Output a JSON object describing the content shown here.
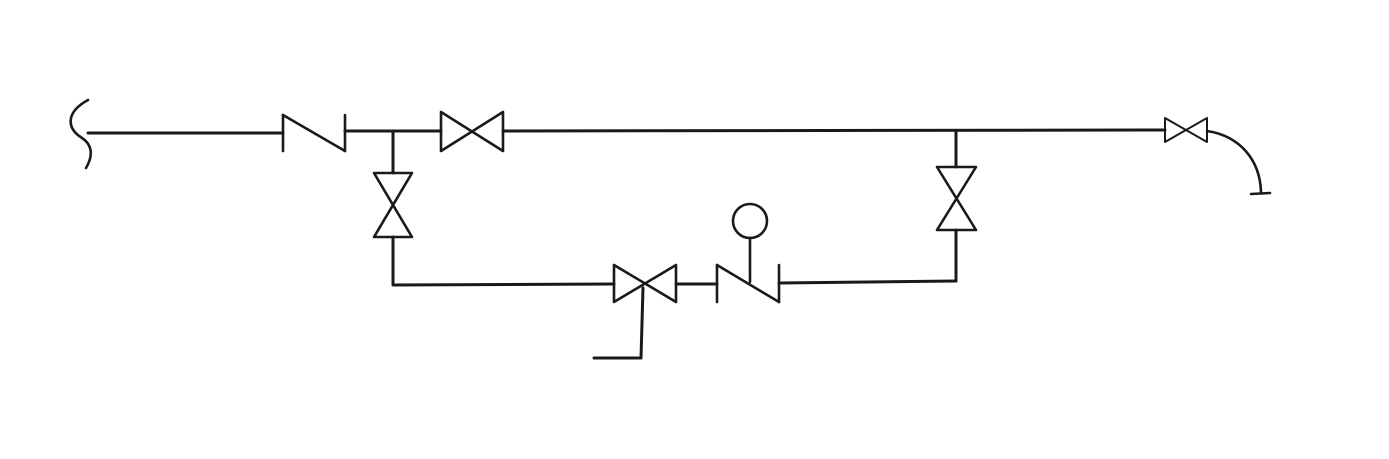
{
  "diagram": {
    "type": "piping-schematic",
    "colors": {
      "ink": "#1a1a1a",
      "background": "#ffffff"
    },
    "components": [
      {
        "id": "inlet-break",
        "kind": "line-break",
        "icon": "wavy-break-icon"
      },
      {
        "id": "check-valve-main",
        "kind": "check-valve",
        "icon": "check-valve-icon"
      },
      {
        "id": "gate-valve-main",
        "kind": "gate-valve",
        "icon": "gate-valve-icon"
      },
      {
        "id": "gate-valve-left-riser",
        "kind": "gate-valve",
        "icon": "gate-valve-icon"
      },
      {
        "id": "gate-valve-bypass",
        "kind": "gate-valve",
        "icon": "gate-valve-icon"
      },
      {
        "id": "drain-line",
        "kind": "drain-leg",
        "icon": "drain-line-icon"
      },
      {
        "id": "check-valve-bypass",
        "kind": "check-valve",
        "icon": "check-valve-icon"
      },
      {
        "id": "gauge",
        "kind": "gauge-instrument",
        "icon": "gauge-icon"
      },
      {
        "id": "gate-valve-right-riser",
        "kind": "gate-valve",
        "icon": "gate-valve-icon"
      },
      {
        "id": "gate-valve-outlet",
        "kind": "gate-valve",
        "icon": "gate-valve-icon"
      },
      {
        "id": "outlet-elbow-cap",
        "kind": "end-cap",
        "icon": "end-cap-icon"
      }
    ]
  }
}
